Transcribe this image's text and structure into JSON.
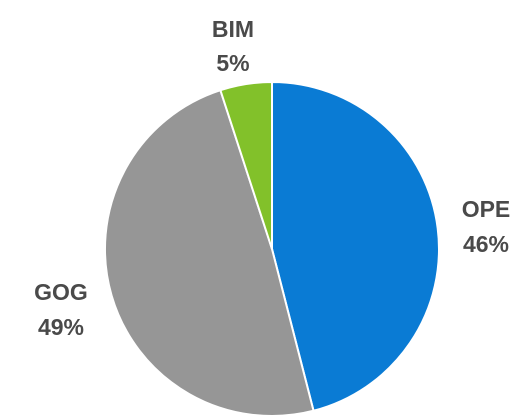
{
  "chart_data": {
    "type": "pie",
    "slices": [
      {
        "label": "OPE",
        "value": 46,
        "value_label": "46%",
        "color": "#0a7bd4"
      },
      {
        "label": "GOG",
        "value": 49,
        "value_label": "49%",
        "color": "#969696"
      },
      {
        "label": "BIM",
        "value": 5,
        "value_label": "5%",
        "color": "#82c12a"
      }
    ],
    "start_angle_deg": 0,
    "direction": "clockwise",
    "slice_border_color": "#ffffff",
    "label_color": "#4a4a4a",
    "legend": "none"
  }
}
